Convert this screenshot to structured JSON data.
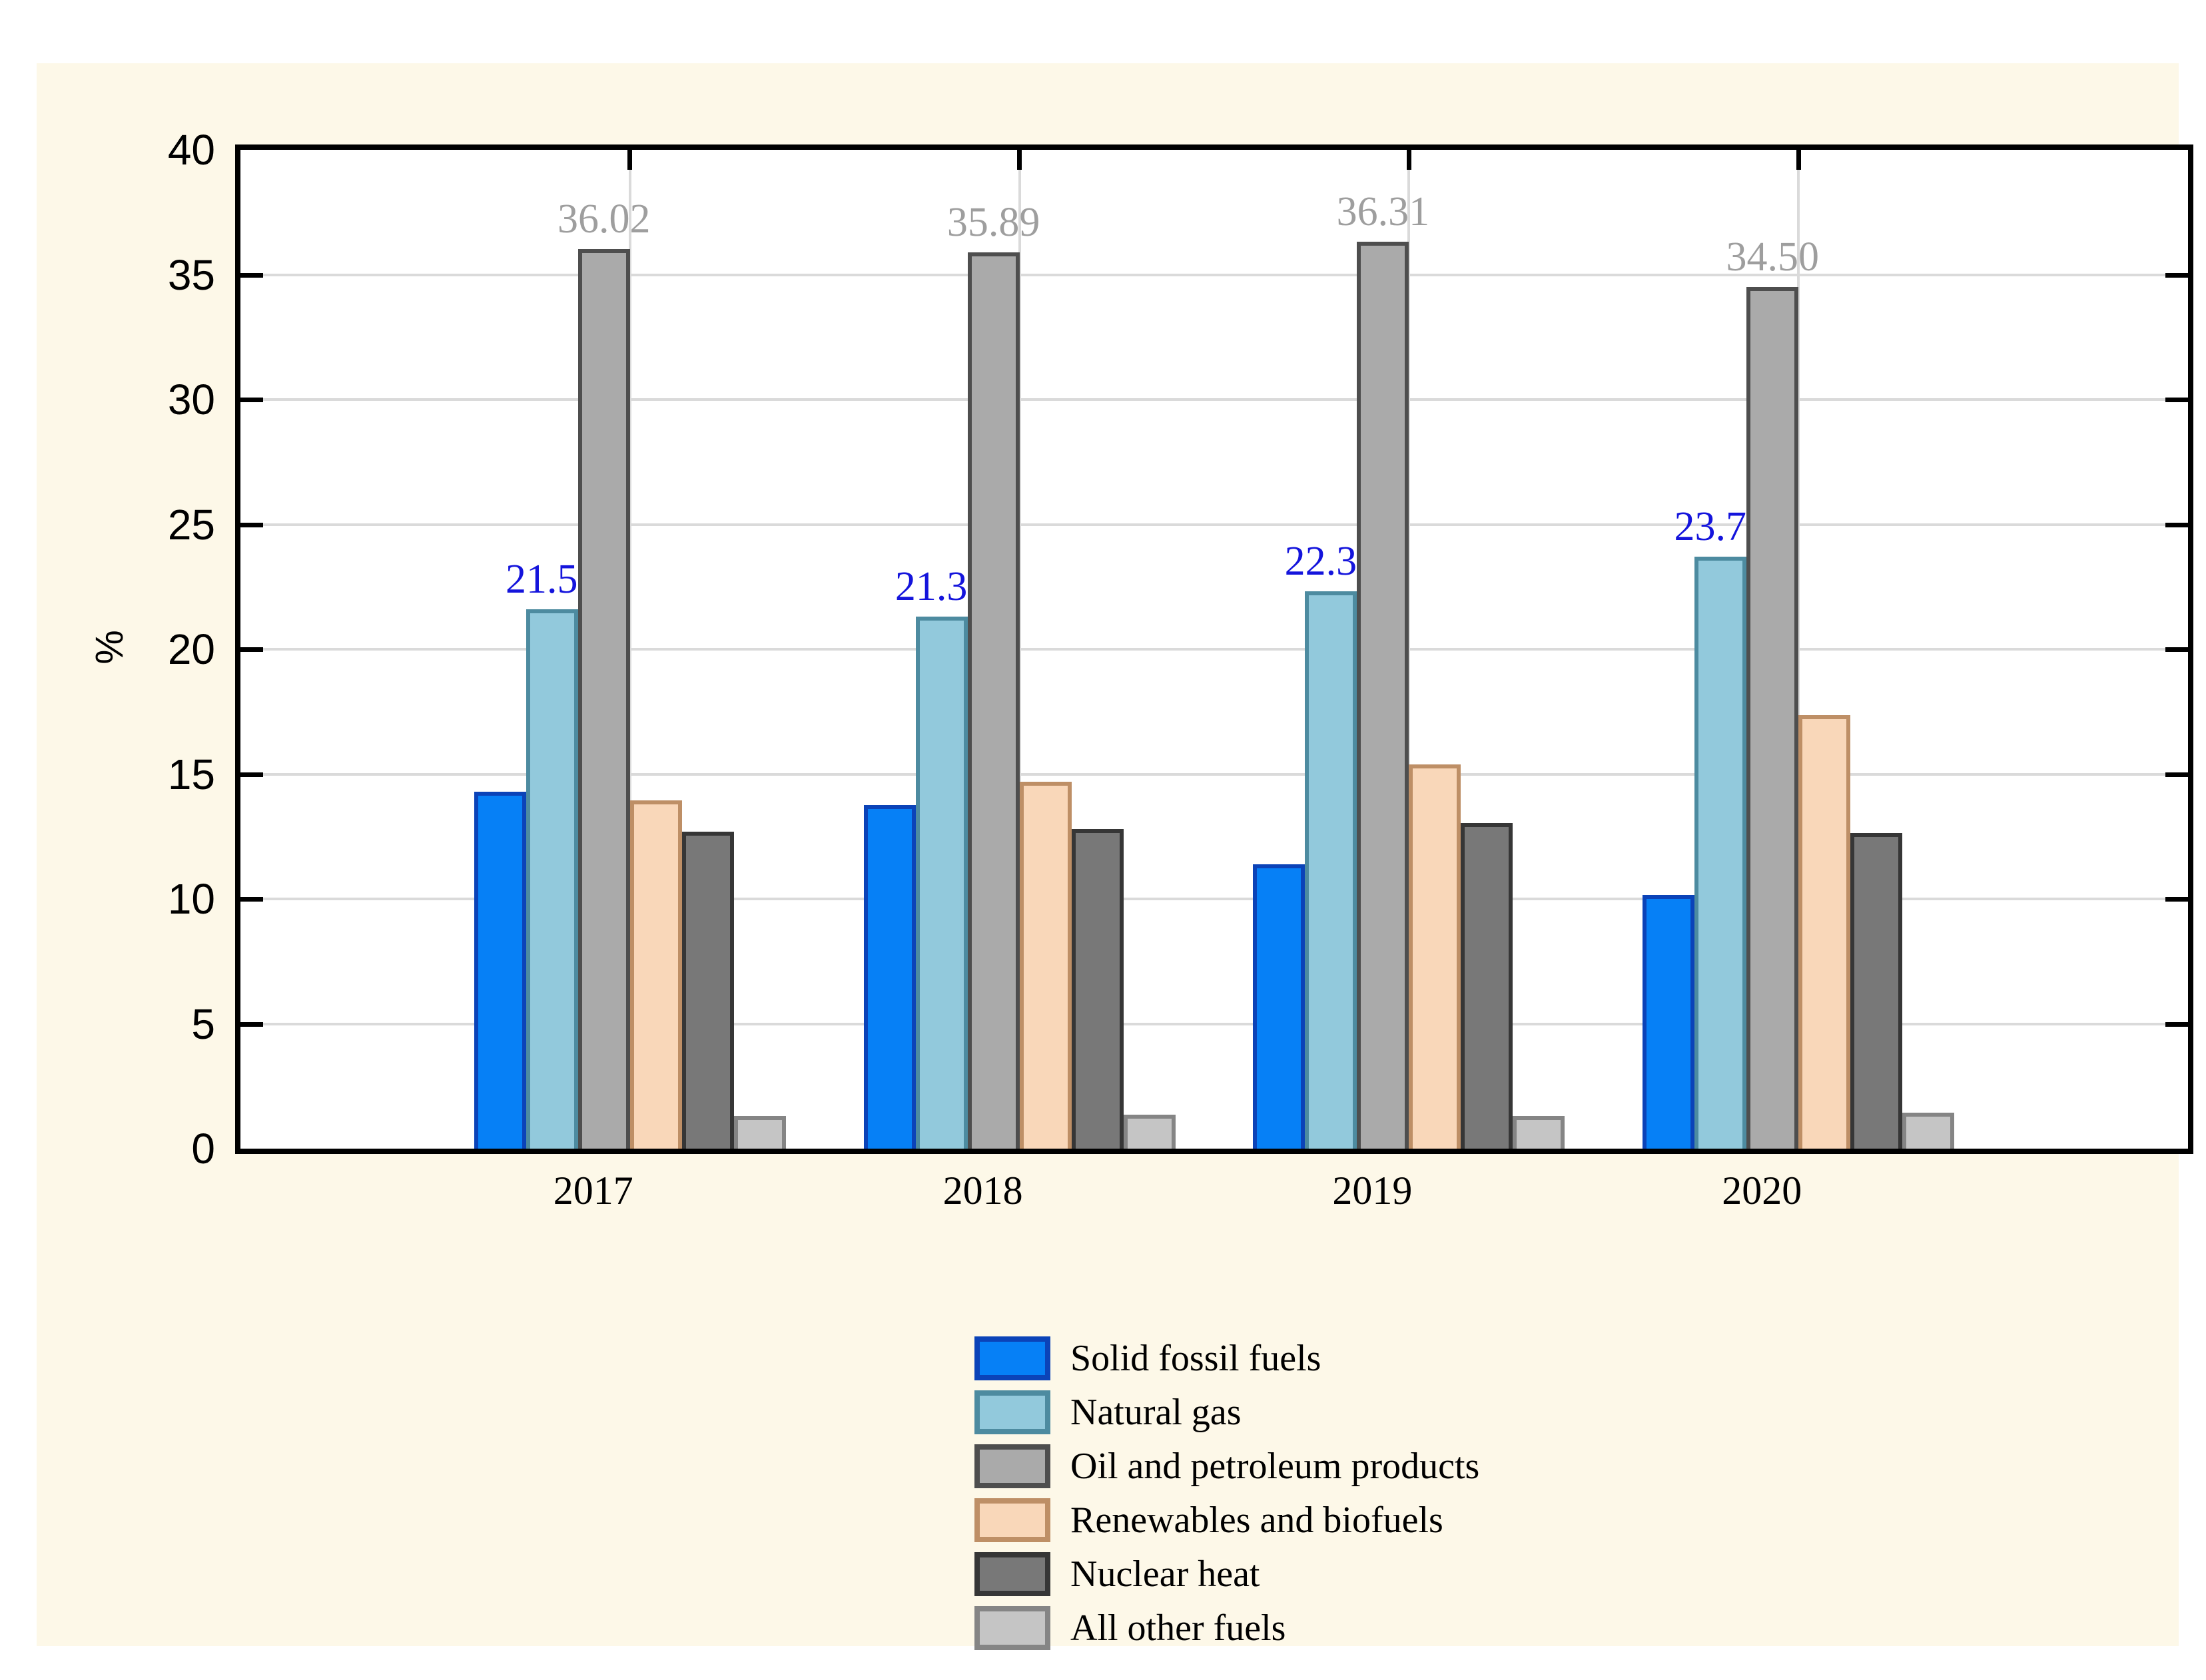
{
  "figure": {
    "page_background": "#FFFFFF",
    "figure_background": "#FDF8E8",
    "plot_background": "#FFFFFF",
    "axis_color": "#000000",
    "gridline_color": "#DADADA"
  },
  "chart_data": {
    "type": "bar",
    "title": "",
    "xlabel": "",
    "ylabel": "%",
    "ylim": [
      0,
      40
    ],
    "yticks": [
      0,
      5,
      10,
      15,
      20,
      25,
      30,
      35,
      40
    ],
    "grid": "horizontal gridlines every 5 units; vertical gridline at each category center",
    "legend_position": "bottom-center",
    "categories": [
      "2017",
      "2018",
      "2019",
      "2020"
    ],
    "series": [
      {
        "name": "Solid fossil fuels",
        "fill": "#0680F6",
        "border": "#0B43B8",
        "values": [
          14.3,
          13.75,
          11.4,
          10.15
        ],
        "labels": null,
        "label_color": null
      },
      {
        "name": "Natural gas",
        "fill": "#92C9DC",
        "border": "#4D8BA0",
        "values": [
          21.59,
          21.31,
          22.33,
          23.72
        ],
        "labels": [
          "21.59",
          "21.31",
          "22.33",
          "23.72"
        ],
        "label_color": "#1414DC"
      },
      {
        "name": "Oil and petroleum products",
        "fill": "#AAAAAA",
        "border": "#4E4E4E",
        "values": [
          36.02,
          35.89,
          36.31,
          34.5
        ],
        "labels": [
          "36.02",
          "35.89",
          "36.31",
          "34.50"
        ],
        "label_color": "#9E9E9E"
      },
      {
        "name": "Renewables and biofuels",
        "fill": "#F9D7B9",
        "border": "#BE8F66",
        "values": [
          13.95,
          14.7,
          15.4,
          17.35
        ],
        "labels": null,
        "label_color": null
      },
      {
        "name": "Nuclear heat",
        "fill": "#787878",
        "border": "#363636",
        "values": [
          12.7,
          12.8,
          13.05,
          12.65
        ],
        "labels": null,
        "label_color": null
      },
      {
        "name": "All other fuels",
        "fill": "#C5C5C5",
        "border": "#858585",
        "values": [
          1.3,
          1.35,
          1.3,
          1.45
        ],
        "labels": null,
        "label_color": null
      }
    ]
  }
}
